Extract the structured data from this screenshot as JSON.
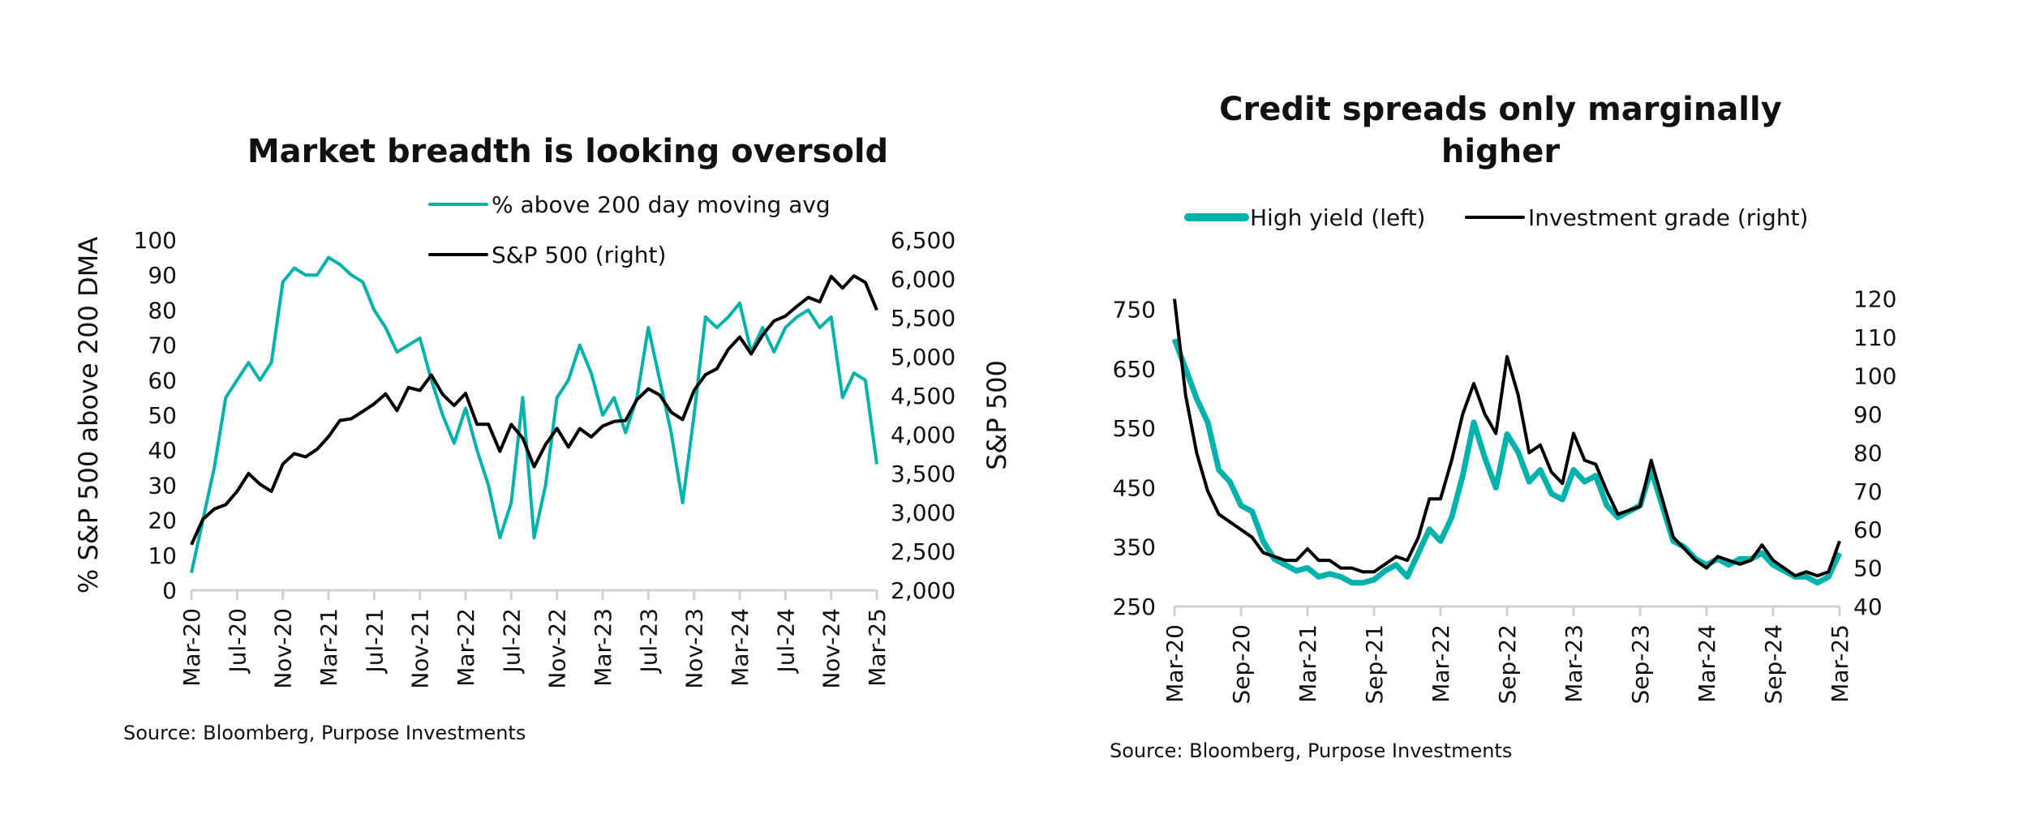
{
  "chart_data": [
    {
      "type": "line",
      "title": "Market breadth is looking oversold",
      "ylabel": "% S&P 500 above 200 DMA",
      "y2label": "S&P 500",
      "source": "Source: Bloomberg, Purpose Investments",
      "x_ticks": [
        "Mar-20",
        "Jul-20",
        "Nov-20",
        "Mar-21",
        "Jul-21",
        "Nov-21",
        "Mar-22",
        "Jul-22",
        "Nov-22",
        "Mar-23",
        "Jul-23",
        "Nov-23",
        "Mar-24",
        "Jul-24",
        "Nov-24",
        "Mar-25"
      ],
      "y_ticks": [
        "0",
        "10",
        "20",
        "30",
        "40",
        "50",
        "60",
        "70",
        "80",
        "90",
        "100"
      ],
      "y2_ticks": [
        "2,000",
        "2,500",
        "3,000",
        "3,500",
        "4,000",
        "4,500",
        "5,000",
        "5,500",
        "6,000",
        "6,500"
      ],
      "ylim": [
        0,
        100
      ],
      "y2lim": [
        2000,
        6500
      ],
      "x_start": "Mar-20",
      "x_end": "Mar-25",
      "x_frequency": "monthly",
      "legend_position": "top-right",
      "grid": false,
      "series": [
        {
          "name": "% above 200 day moving avg",
          "axis": "left",
          "color": "#00b2a9",
          "values": [
            5,
            20,
            35,
            55,
            60,
            65,
            60,
            65,
            88,
            92,
            90,
            90,
            95,
            93,
            90,
            88,
            80,
            75,
            68,
            70,
            72,
            60,
            50,
            42,
            52,
            40,
            30,
            15,
            25,
            55,
            15,
            30,
            55,
            60,
            70,
            62,
            50,
            55,
            45,
            55,
            75,
            60,
            45,
            25,
            50,
            78,
            75,
            78,
            82,
            68,
            75,
            68,
            75,
            78,
            80,
            75,
            78,
            55,
            62,
            60,
            36
          ]
        },
        {
          "name": "S&P 500 (right)",
          "axis": "right",
          "color": "#000000",
          "values": [
            2585,
            2912,
            3044,
            3100,
            3271,
            3500,
            3363,
            3270,
            3622,
            3756,
            3714,
            3811,
            3973,
            4181,
            4204,
            4298,
            4395,
            4523,
            4308,
            4605,
            4567,
            4766,
            4516,
            4374,
            4530,
            4132,
            4132,
            3785,
            4130,
            3955,
            3586,
            3872,
            4080,
            3840,
            4077,
            3970,
            4109,
            4169,
            4180,
            4450,
            4589,
            4508,
            4288,
            4194,
            4568,
            4770,
            4846,
            5096,
            5254,
            5036,
            5278,
            5460,
            5522,
            5648,
            5762,
            5705,
            6032,
            5882,
            6040,
            5955,
            5600
          ]
        }
      ]
    },
    {
      "type": "line",
      "title": "Credit spreads only marginally higher",
      "title_lines": [
        "Credit spreads only marginally",
        "higher"
      ],
      "source": "Source: Bloomberg, Purpose Investments",
      "x_ticks": [
        "Mar-20",
        "Sep-20",
        "Mar-21",
        "Sep-21",
        "Mar-22",
        "Sep-22",
        "Mar-23",
        "Sep-23",
        "Mar-24",
        "Sep-24",
        "Mar-25"
      ],
      "y_ticks": [
        "250",
        "350",
        "450",
        "550",
        "650",
        "750"
      ],
      "y2_ticks": [
        "40",
        "50",
        "60",
        "70",
        "80",
        "90",
        "100",
        "110",
        "120"
      ],
      "ylim": [
        250,
        800
      ],
      "y2lim": [
        40,
        125
      ],
      "x_start": "Mar-20",
      "x_end": "Mar-25",
      "x_frequency": "monthly",
      "legend_position": "top",
      "grid": false,
      "series": [
        {
          "name": "High yield (left)",
          "axis": "left",
          "color": "#00b2a9",
          "values": [
            700,
            650,
            600,
            560,
            480,
            460,
            420,
            410,
            360,
            330,
            320,
            310,
            315,
            300,
            305,
            300,
            290,
            290,
            295,
            310,
            320,
            300,
            340,
            380,
            360,
            400,
            470,
            560,
            500,
            450,
            540,
            510,
            460,
            480,
            440,
            430,
            480,
            460,
            470,
            420,
            400,
            410,
            420,
            480,
            420,
            360,
            350,
            330,
            320,
            330,
            320,
            330,
            330,
            340,
            320,
            310,
            300,
            300,
            290,
            300,
            340
          ]
        },
        {
          "name": "Investment grade (right)",
          "axis": "right",
          "color": "#000000",
          "values": [
            120,
            95,
            80,
            70,
            64,
            62,
            60,
            58,
            54,
            53,
            52,
            52,
            55,
            52,
            52,
            50,
            50,
            49,
            49,
            51,
            53,
            52,
            58,
            68,
            68,
            78,
            90,
            98,
            90,
            85,
            105,
            95,
            80,
            82,
            75,
            72,
            85,
            78,
            77,
            70,
            64,
            65,
            66,
            78,
            68,
            58,
            55,
            52,
            50,
            53,
            52,
            51,
            52,
            56,
            52,
            50,
            48,
            49,
            48,
            49,
            57
          ]
        }
      ]
    }
  ]
}
